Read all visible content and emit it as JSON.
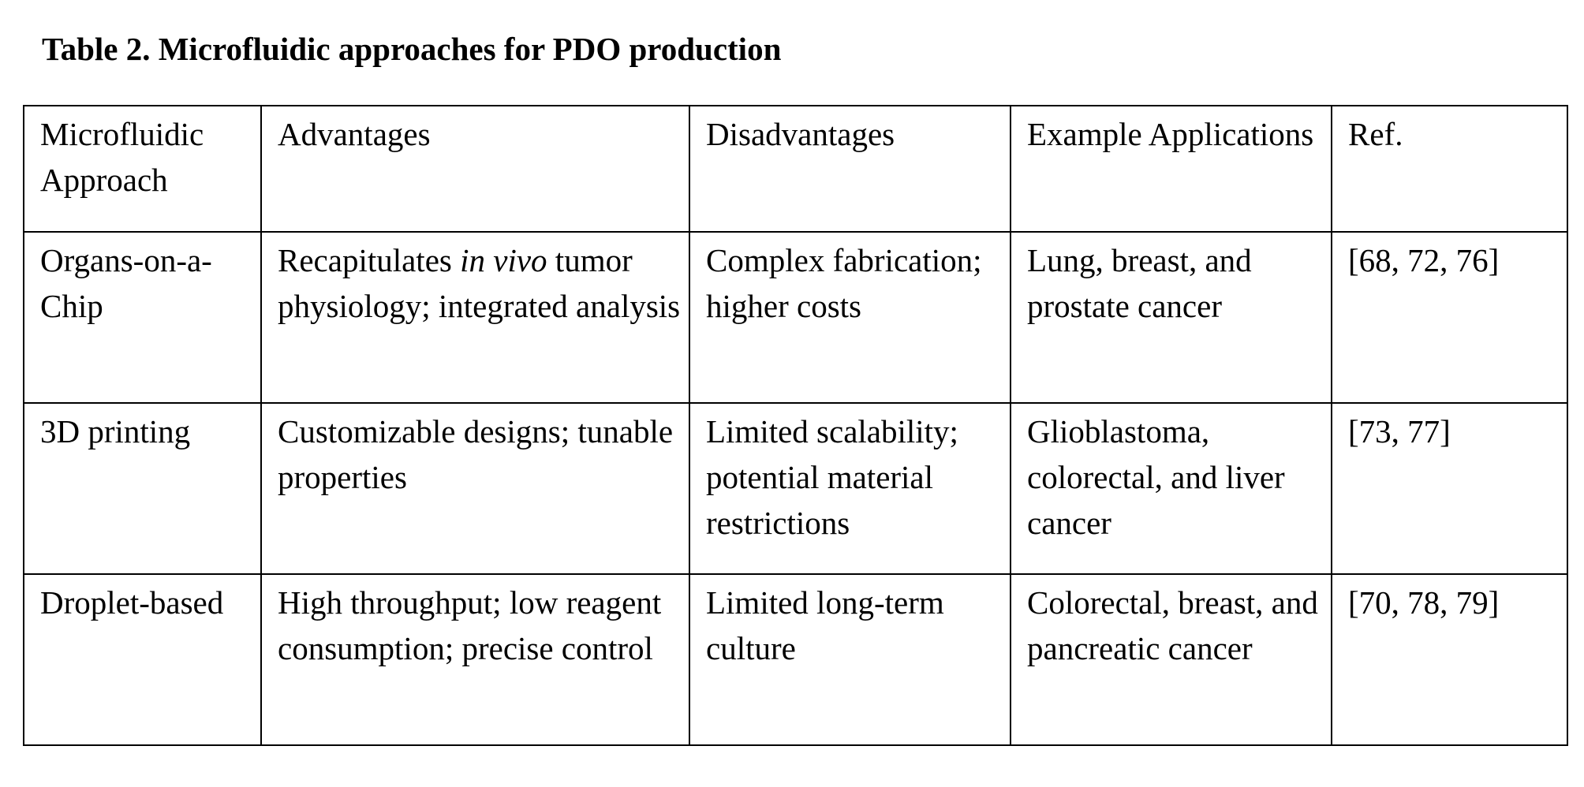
{
  "caption": "Table 2. Microfluidic approaches for PDO production",
  "table": {
    "headers": [
      "Microfluidic Approach",
      "Advantages",
      "Disadvantages",
      "Example Applications",
      "Ref."
    ],
    "rows": [
      {
        "approach": "Organs-on-a-Chip",
        "advantages_pre": "Recapitulates ",
        "advantages_italic": "in vivo",
        "advantages_post": " tumor physiology; integrated analysis",
        "disadvantages": "Complex fabrication; higher costs",
        "applications": "Lung, breast, and prostate cancer",
        "ref": "[68, 72, 76]"
      },
      {
        "approach": "3D printing",
        "advantages": "Customizable designs; tunable properties",
        "disadvantages": "Limited scalability; potential material restrictions",
        "applications": "Glioblastoma, colorectal, and liver cancer",
        "ref": "[73, 77]"
      },
      {
        "approach": "Droplet-based",
        "advantages": "High throughput; low reagent consumption; precise control",
        "disadvantages": "Limited long-term culture",
        "applications": "Colorectal, breast, and pancreatic cancer",
        "ref": "[70, 78, 79]"
      }
    ]
  }
}
